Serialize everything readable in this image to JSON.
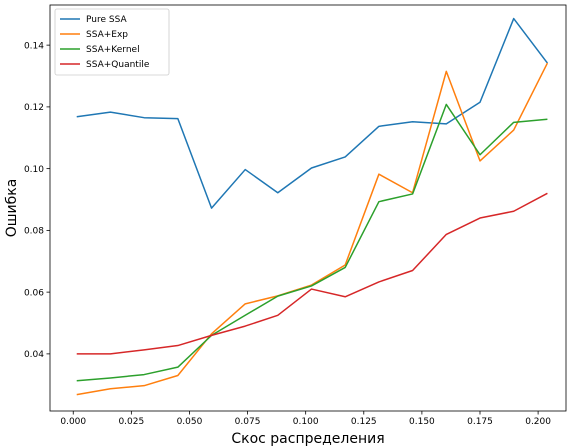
{
  "chart_data": {
    "type": "line",
    "xlabel": "Скос распределения",
    "ylabel": "Ошибка",
    "xlim": [
      -0.01,
      0.212
    ],
    "ylim": [
      0.0215,
      0.153
    ],
    "xticks": [
      0.0,
      0.025,
      0.05,
      0.075,
      0.1,
      0.125,
      0.15,
      0.175,
      0.2
    ],
    "xtick_labels": [
      "0.000",
      "0.025",
      "0.050",
      "0.075",
      "0.100",
      "0.125",
      "0.150",
      "0.175",
      "0.200"
    ],
    "yticks": [
      0.04,
      0.06,
      0.08,
      0.1,
      0.12,
      0.14
    ],
    "ytick_labels": [
      "0.04",
      "0.06",
      "0.08",
      "0.10",
      "0.12",
      "0.14"
    ],
    "grid": false,
    "legend_position": "top-left",
    "x": [
      0.0015,
      0.016,
      0.0305,
      0.045,
      0.0595,
      0.074,
      0.088,
      0.1025,
      0.117,
      0.1315,
      0.146,
      0.1605,
      0.175,
      0.1895,
      0.204
    ],
    "series": [
      {
        "name": "Pure SSA",
        "color": "#1f77b4",
        "values": [
          0.1168,
          0.1183,
          0.1165,
          0.1162,
          0.0872,
          0.0997,
          0.0922,
          0.1002,
          0.1038,
          0.1137,
          0.1152,
          0.1145,
          0.1215,
          0.1486,
          0.1342
        ]
      },
      {
        "name": "SSA+Exp",
        "color": "#ff7f0e",
        "values": [
          0.0268,
          0.0287,
          0.0297,
          0.033,
          0.0465,
          0.0562,
          0.0588,
          0.0623,
          0.0688,
          0.0982,
          0.0922,
          0.1315,
          0.1025,
          0.1125,
          0.1342
        ]
      },
      {
        "name": "SSA+Kernel",
        "color": "#2ca02c",
        "values": [
          0.0313,
          0.0322,
          0.0333,
          0.0357,
          0.046,
          0.0525,
          0.0587,
          0.062,
          0.068,
          0.0893,
          0.0918,
          0.1208,
          0.1045,
          0.115,
          0.116
        ]
      },
      {
        "name": "SSA+Quantile",
        "color": "#d62728",
        "values": [
          0.04,
          0.04,
          0.0413,
          0.0427,
          0.046,
          0.049,
          0.0525,
          0.061,
          0.0585,
          0.0633,
          0.067,
          0.0787,
          0.084,
          0.0862,
          0.092
        ]
      }
    ]
  }
}
